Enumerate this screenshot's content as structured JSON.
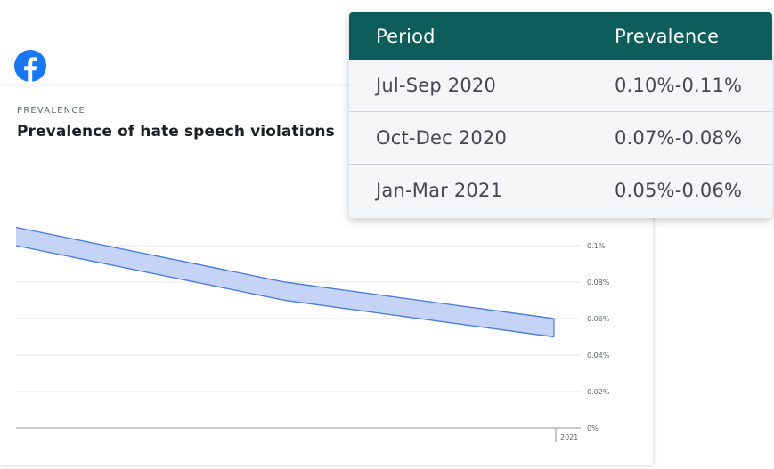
{
  "brand": {
    "logo_icon": "facebook-logo-icon",
    "color": "#1877F2"
  },
  "chart_data": {
    "type": "area",
    "eyebrow": "PREVALENCE",
    "title": "Prevalence of hate speech violations",
    "x": [
      "Jul-Sep 2020",
      "Oct-Dec 2020",
      "Jan-Mar 2021"
    ],
    "lower": [
      0.1,
      0.07,
      0.05
    ],
    "upper": [
      0.11,
      0.08,
      0.06
    ],
    "y_ticks": [
      {
        "value": 0.1,
        "label": "0.1%"
      },
      {
        "value": 0.08,
        "label": "0.08%"
      },
      {
        "value": 0.06,
        "label": "0.06%"
      },
      {
        "value": 0.04,
        "label": "0.04%"
      },
      {
        "value": 0.02,
        "label": "0.02%"
      },
      {
        "value": 0.0,
        "label": "0%"
      }
    ],
    "x_tick_label": "2021",
    "ylim": [
      0,
      0.1
    ],
    "grid": true,
    "band_fill": "#c5d3f7",
    "band_stroke": "#4c7ede"
  },
  "table": {
    "headers": [
      "Period",
      "Prevalence"
    ],
    "rows": [
      [
        "Jul-Sep 2020",
        "0.10%-0.11%"
      ],
      [
        "Oct-Dec 2020",
        "0.07%-0.08%"
      ],
      [
        "Jan-Mar 2021",
        "0.05%-0.06%"
      ]
    ],
    "header_color": "#0D5E5A"
  }
}
